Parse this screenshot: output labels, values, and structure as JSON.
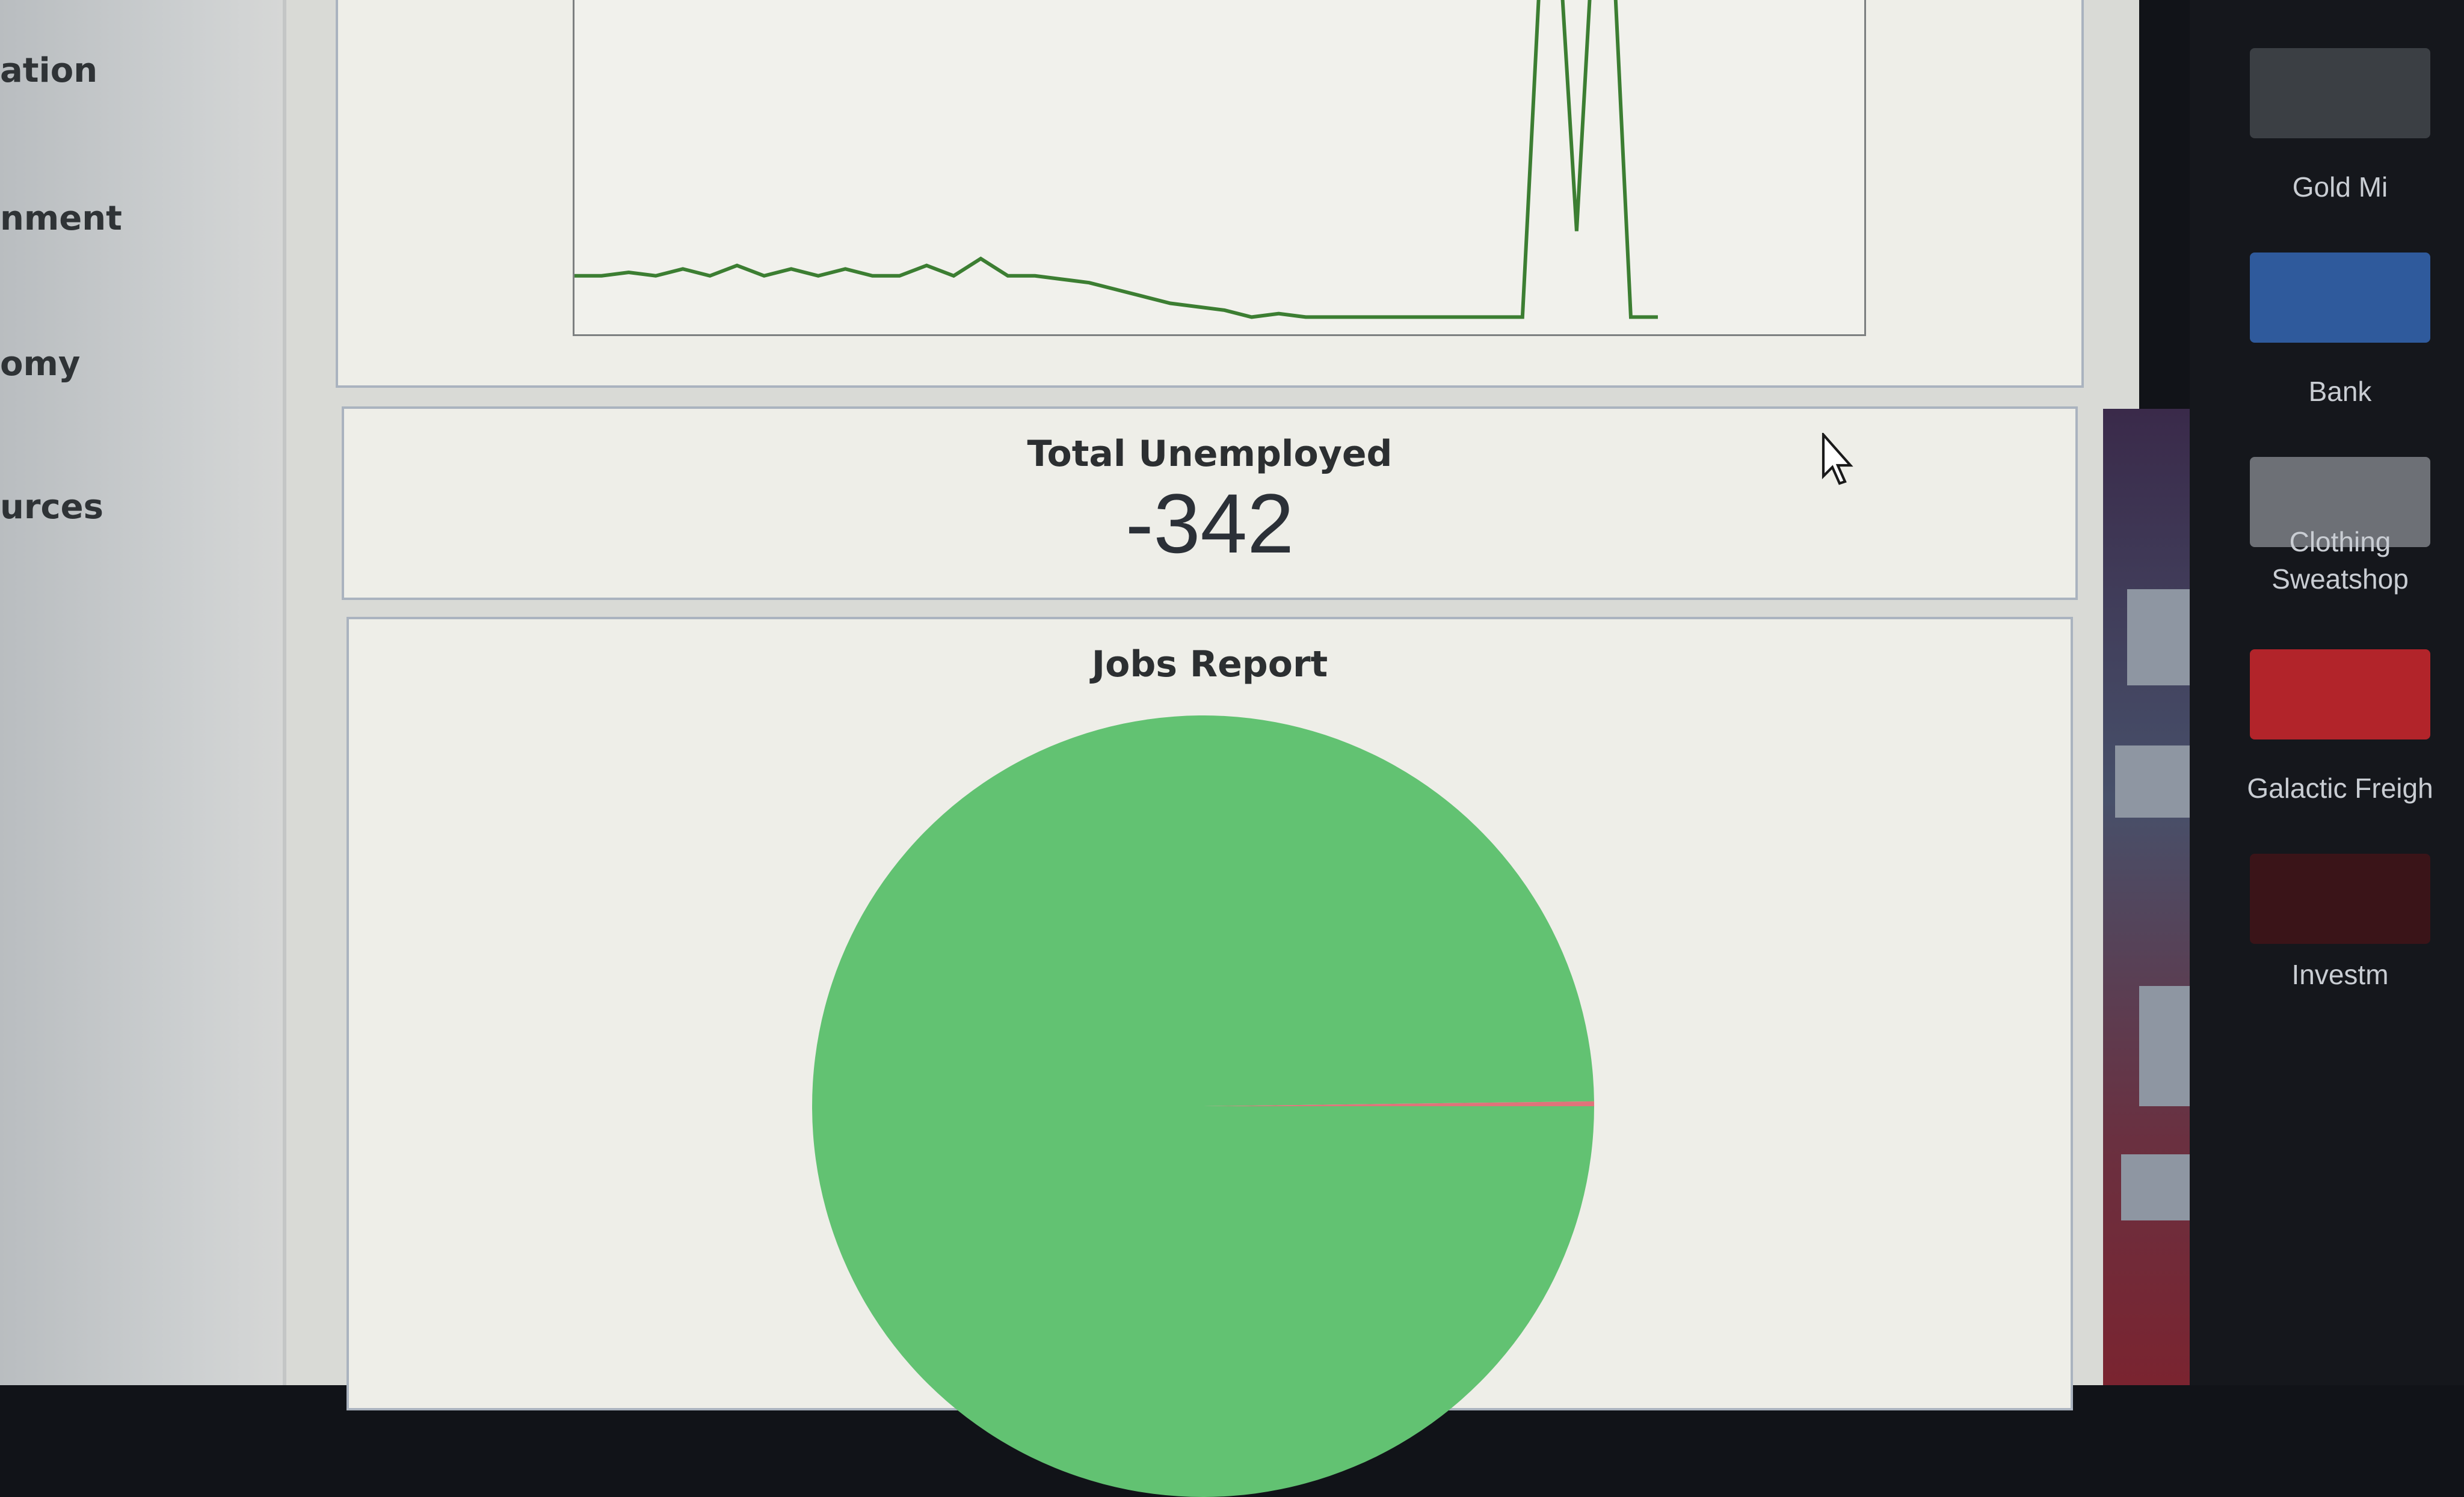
{
  "sidebar": {
    "items": [
      {
        "label": "ation"
      },
      {
        "label": "nment"
      },
      {
        "label": "omy"
      },
      {
        "label": "urces"
      }
    ]
  },
  "history_chart": {
    "type": "line",
    "series": [
      {
        "color": "#3c7e32",
        "values": [
          0.17,
          0.17,
          0.18,
          0.17,
          0.19,
          0.17,
          0.2,
          0.17,
          0.19,
          0.17,
          0.19,
          0.17,
          0.17,
          0.2,
          0.17,
          0.22,
          0.17,
          0.17,
          0.16,
          0.15,
          0.13,
          0.11,
          0.09,
          0.08,
          0.07,
          0.05,
          0.06,
          0.05,
          0.05,
          0.05,
          0.05,
          0.05,
          0.05,
          0.05,
          0.05,
          0.05,
          1.6,
          0.3,
          1.7,
          0.05,
          0.05
        ]
      }
    ]
  },
  "unemployed": {
    "title": "Total Unemployed",
    "value": "-342"
  },
  "chart_data": {
    "type": "pie",
    "title": "Jobs Report",
    "slices": [
      {
        "value": 99.8,
        "color": "#62c272"
      },
      {
        "value": 0.2,
        "color": "#e0737a"
      }
    ]
  },
  "buildings": [
    {
      "label": "Gold Mi",
      "color": "#3b3f44"
    },
    {
      "label": "Bank",
      "color": "#2f5a9c"
    },
    {
      "label": "Clothing\nSweatshop",
      "color": "#6d7076"
    },
    {
      "label": "Galactic Freigh",
      "color": "#b2242a"
    },
    {
      "label": "Investm",
      "color": "#3a1418"
    }
  ],
  "icons": {
    "cursor": "arrow-cursor-icon"
  }
}
